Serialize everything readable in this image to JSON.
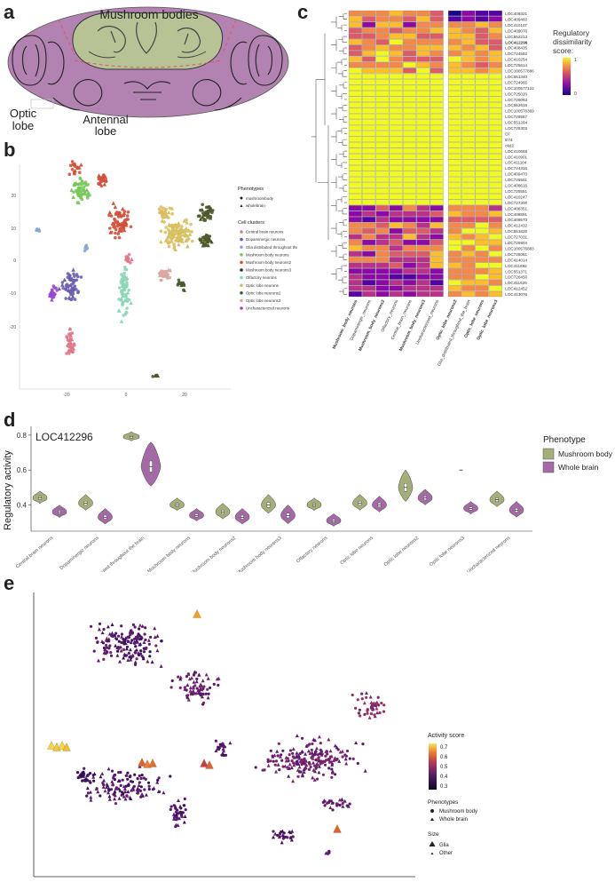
{
  "panels": {
    "a": "a",
    "b": "b",
    "c": "c",
    "d": "d",
    "e": "e"
  },
  "panel_a": {
    "mushroom_label": "Mushroom bodies",
    "optic_label_1": "Optic",
    "optic_label_2": "lobe",
    "antennal_label_1": "Antennal",
    "antennal_label_2": "lobe",
    "colors": {
      "brain": "#b283b0",
      "mushroom": "#b7c394",
      "outline": "#333333",
      "dash": "#e0526a"
    }
  },
  "panel_b": {
    "legend_phenotypes_title": "Phenotypes",
    "phenotypes": [
      {
        "label": "mushroombody",
        "shape": "circle"
      },
      {
        "label": "wholebrain",
        "shape": "triangle"
      }
    ],
    "legend_clusters_title": "Cell clusters",
    "clusters": [
      {
        "label": "Central brain neurons",
        "color": "#e07a8a"
      },
      {
        "label": "Dopaminergic neurons",
        "color": "#6b5fb0"
      },
      {
        "label": "Glia distributed throughout the brain",
        "color": "#8aa8c8"
      },
      {
        "label": "Mushroom body neurons",
        "color": "#78c85a"
      },
      {
        "label": "Mushroom body neurons2",
        "color": "#d4503a"
      },
      {
        "label": "Mushroom body neurons3",
        "color": "#3a2a2a"
      },
      {
        "label": "Olfactory neurons",
        "color": "#8fd6b8"
      },
      {
        "label": "Optic lobe neurons",
        "color": "#d8c060"
      },
      {
        "label": "Optic lobe neurons2",
        "color": "#4a5a2a"
      },
      {
        "label": "Optic lobe neurons3",
        "color": "#d8a8a0"
      },
      {
        "label": "Uncharacterized neurons",
        "color": "#9a4ad0"
      }
    ],
    "x_ticks": [
      "-20",
      "0",
      "20"
    ],
    "y_ticks": [
      "20",
      "10",
      "0",
      "-10",
      "-20"
    ]
  },
  "panel_c": {
    "legend_title_1": "Regulatory",
    "legend_title_2": "dissimilarity",
    "legend_title_3": "score:",
    "legend_max": "1",
    "legend_min": "0",
    "genes": [
      "LOC409321",
      "LOC409460",
      "LOC410107",
      "LOC409076",
      "LOC552213",
      "LOC412296",
      "LOC408435",
      "LOC724592",
      "LOC410254",
      "LOC725614",
      "LOC100577886",
      "LOC551340",
      "LOC724965",
      "LOC100577122",
      "LOC725020",
      "LOC726063",
      "LOC552619",
      "LOC100576369",
      "LOC726567",
      "LOC551264",
      "LOC725303",
      "Dl",
      "E74",
      "ckd2",
      "LOC410669",
      "LOC410901",
      "LOC411104",
      "LOC724315",
      "LOC409470",
      "LOC725561",
      "LOC408616",
      "LOC725551",
      "LOC410247",
      "LOC727300",
      "LOC408351",
      "LOC408891",
      "LOC409573",
      "LOC412432",
      "LOC551825",
      "LOC727031",
      "LOC726904",
      "LOC100576883",
      "LOC725061",
      "LOC414014",
      "LOC411692",
      "LOC551371",
      "LOC726450",
      "LOC411629",
      "LOC412452",
      "LOC413076"
    ],
    "bold_gene_index": 5,
    "columns": [
      {
        "label": "Mushroom_body_neurons",
        "bold": true
      },
      {
        "label": "Dopaminergic_neurons",
        "bold": false
      },
      {
        "label": "Mushroom_body_neurons2",
        "bold": true
      },
      {
        "label": "Olfactory_neurons",
        "bold": false
      },
      {
        "label": "Central_brain_neurons",
        "bold": false
      },
      {
        "label": "Mushroom_body_neurons3",
        "bold": true
      },
      {
        "label": "Uncharacterized_neurons",
        "bold": false
      },
      {
        "label": "Optic_lobe_neurons2",
        "bold": true
      },
      {
        "label": "Glia_distributed_throughout_the_brain",
        "bold": false
      },
      {
        "label": "Optic_lobe_neurons",
        "bold": true
      },
      {
        "label": "Optic_lobe_neurons3",
        "bold": true
      }
    ]
  },
  "chart_data": [
    {
      "type": "heatmap",
      "title": "Regulatory dissimilarity score",
      "scale": [
        0,
        1
      ],
      "note": "11 cell clusters x 50 regulons; high rows near 1 (yellow) in middle, low values (purple) at top-right and bottom"
    },
    {
      "type": "violin",
      "title": "LOC412296",
      "ylabel": "Regulatory activity",
      "ylim": [
        0.25,
        0.85
      ],
      "y_ticks": [
        "0.8",
        "0.6",
        "0.4"
      ],
      "legend_title": "Phenotype",
      "series": [
        {
          "name": "Mushroom body",
          "color": "#a3ae78"
        },
        {
          "name": "Whole brain",
          "color": "#a56aa6"
        }
      ],
      "categories": [
        "Central brain neurons",
        "Dopaminergic neurons",
        "Glia distributed throughout the brain",
        "Mushroom body neurons",
        "Mushroom body neurons2",
        "Mushroom body neurons3",
        "Olfactory neurons",
        "Optic lobe neurons",
        "Optic lobe neurons2",
        "Optic lobe neurons3",
        "Uncharacterized neurons"
      ],
      "medians": {
        "Mushroom body": [
          0.44,
          0.41,
          0.79,
          0.4,
          0.36,
          0.4,
          0.4,
          0.41,
          0.5,
          null,
          0.43
        ],
        "Whole brain": [
          0.36,
          0.33,
          0.62,
          0.34,
          0.33,
          0.34,
          0.31,
          0.4,
          0.44,
          0.38,
          0.37
        ]
      }
    },
    {
      "type": "scatter",
      "title": "Activity score",
      "legend_activity_title": "Activity score",
      "activity_ticks": [
        "0.7",
        "0.6",
        "0.5",
        "0.4",
        "0.3"
      ],
      "legend_phenotypes_title": "Phenotypes",
      "phenotypes": [
        "Mushroom body",
        "Whole brain"
      ],
      "legend_size_title": "Size",
      "sizes": [
        "Glia",
        "Other"
      ]
    }
  ]
}
